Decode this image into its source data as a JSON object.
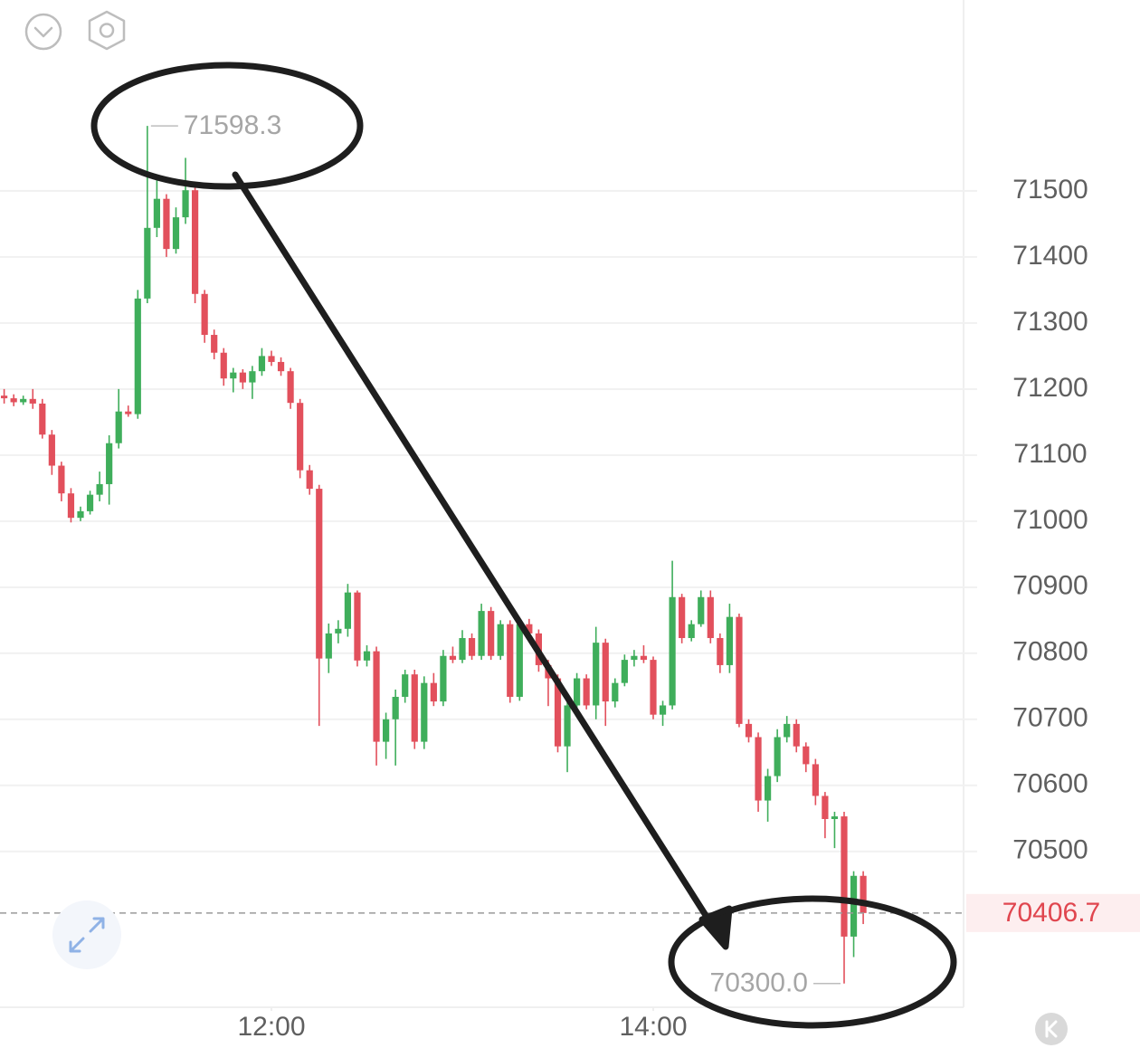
{
  "chart_data": {
    "type": "candlestick",
    "open": [
      71190,
      71186,
      71180,
      71185,
      71178,
      71131,
      71084,
      71042,
      71005,
      71015,
      71040,
      71056,
      71118,
      71166,
      71162,
      71337,
      71444,
      71488,
      71412,
      71460,
      71501,
      71344,
      71282,
      71255,
      71216,
      71225,
      71210,
      71227,
      71250,
      71241,
      71227,
      71179,
      71077,
      71049,
      70792,
      70830,
      70837,
      70892,
      70789,
      70803,
      70666,
      70700,
      70734,
      70768,
      70666,
      70755,
      70727,
      70796,
      70790,
      70823,
      70796,
      70864,
      70796,
      70844,
      70734,
      70844,
      70830,
      70782,
      70762,
      70659,
      70721,
      70762,
      70721,
      70816,
      70727,
      70755,
      70790,
      70796,
      70790,
      70707,
      70721,
      70885,
      70823,
      70844,
      70885,
      70823,
      70782,
      70855,
      70693,
      70673,
      70577,
      70614,
      70673,
      70693,
      70659,
      70632,
      70584,
      70549,
      70553,
      70371,
      70463
    ],
    "high": [
      71200,
      71192,
      71190,
      71200,
      71185,
      71138,
      71090,
      71050,
      71022,
      71046,
      71075,
      71130,
      71200,
      71175,
      71350,
      71598.3,
      71520,
      71495,
      71475,
      71550,
      71510,
      71350,
      71290,
      71262,
      71232,
      71230,
      71235,
      71262,
      71258,
      71248,
      71232,
      71185,
      71085,
      71055,
      70845,
      70850,
      70905,
      70895,
      70812,
      70810,
      70710,
      70745,
      70775,
      70775,
      70765,
      70770,
      70805,
      70810,
      70835,
      70830,
      70875,
      70870,
      70850,
      70850,
      70850,
      70852,
      70836,
      70790,
      70768,
      70730,
      70770,
      70768,
      70840,
      70822,
      70762,
      70798,
      70805,
      70812,
      70795,
      70728,
      70940,
      70890,
      70850,
      70895,
      70895,
      70830,
      70875,
      70860,
      70700,
      70680,
      70625,
      70685,
      70705,
      70700,
      70665,
      70640,
      70590,
      70560,
      70560,
      70470,
      70470
    ],
    "low": [
      71178,
      71174,
      71176,
      71170,
      71125,
      71070,
      71030,
      70998,
      71000,
      71010,
      71030,
      71025,
      71110,
      71158,
      71155,
      71330,
      71430,
      71400,
      71405,
      71450,
      71330,
      71270,
      71245,
      71205,
      71195,
      71200,
      71185,
      71220,
      71235,
      71220,
      71170,
      71065,
      71040,
      70690,
      70770,
      70815,
      70825,
      70780,
      70780,
      70630,
      70640,
      70630,
      70725,
      70655,
      70655,
      70720,
      70720,
      70785,
      70785,
      70790,
      70790,
      70790,
      70790,
      70725,
      70728,
      70822,
      70772,
      70720,
      70650,
      70620,
      70715,
      70715,
      70700,
      70690,
      70718,
      70750,
      70780,
      70785,
      70700,
      70690,
      70715,
      70815,
      70818,
      70840,
      70815,
      70770,
      70770,
      70688,
      70665,
      70560,
      70545,
      70605,
      70665,
      70650,
      70620,
      70570,
      70520,
      70505,
      70300.0,
      70340,
      70390
    ],
    "close": [
      71186,
      71180,
      71185,
      71178,
      71131,
      71084,
      71042,
      71005,
      71015,
      71040,
      71056,
      71118,
      71166,
      71162,
      71337,
      71444,
      71488,
      71412,
      71460,
      71501,
      71344,
      71282,
      71255,
      71216,
      71225,
      71210,
      71227,
      71250,
      71241,
      71227,
      71179,
      71077,
      71049,
      70792,
      70830,
      70837,
      70892,
      70789,
      70803,
      70666,
      70700,
      70734,
      70768,
      70666,
      70755,
      70727,
      70796,
      70790,
      70823,
      70796,
      70864,
      70796,
      70844,
      70734,
      70844,
      70830,
      70782,
      70762,
      70659,
      70721,
      70762,
      70721,
      70816,
      70727,
      70755,
      70790,
      70796,
      70790,
      70707,
      70721,
      70885,
      70823,
      70844,
      70885,
      70823,
      70782,
      70855,
      70693,
      70673,
      70577,
      70614,
      70673,
      70693,
      70659,
      70632,
      70584,
      70549,
      70553,
      70371,
      70463,
      70406.7
    ],
    "up_color": "#3fae5b",
    "down_color": "#e2505c",
    "xticks": [
      {
        "value": 28,
        "label": "12:00"
      },
      {
        "value": 68,
        "label": "14:00"
      }
    ],
    "ylim": [
      70264,
      71789
    ],
    "yticks": [
      70500,
      70600,
      70700,
      70800,
      70900,
      71000,
      71100,
      71200,
      71300,
      71400,
      71500
    ],
    "grid": true,
    "extreme_labels": [
      {
        "value": 71598.3,
        "label": "71598.3"
      },
      {
        "value": 70300.0,
        "label": "70300.0"
      }
    ]
  }
}
